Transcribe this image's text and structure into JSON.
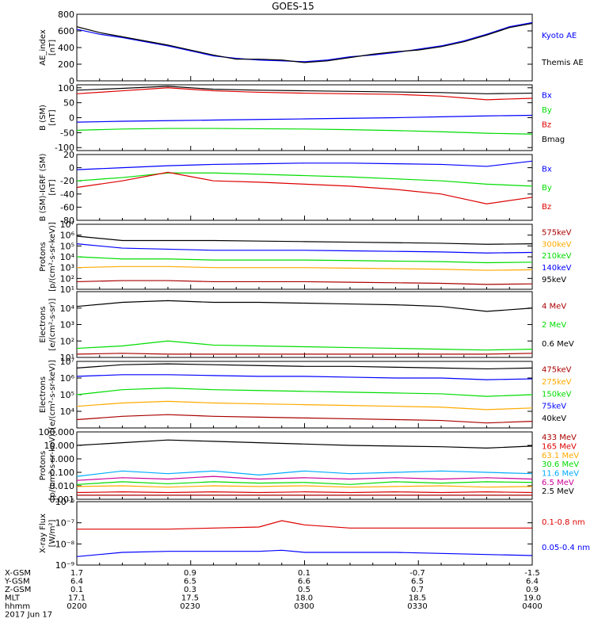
{
  "title": "GOES-15",
  "colors": {
    "black": "#000000",
    "blue": "#0000ff",
    "green": "#00dd00",
    "red": "#dd0000",
    "orange": "#ffaa00",
    "dark_red": "#aa0000",
    "cyan": "#00aaff",
    "magenta": "#aa0055",
    "purple": "#cc0099"
  },
  "chart_data": [
    {
      "type": "line",
      "panel": "ae",
      "ylabel": "AE_index\n[nT]",
      "ylim": [
        0,
        800
      ],
      "yticks": [
        "0",
        "200",
        "400",
        "600",
        "800"
      ],
      "ytick_values": [
        0,
        200,
        400,
        600,
        800
      ],
      "x": [
        0,
        5,
        10,
        15,
        20,
        25,
        30,
        35,
        40,
        45,
        50,
        55,
        60,
        65,
        70,
        75,
        80,
        85,
        90,
        95,
        100
      ],
      "series": [
        {
          "name": "Kyoto AE",
          "color": "#0000ff",
          "values": [
            620,
            560,
            520,
            470,
            420,
            360,
            300,
            270,
            250,
            240,
            230,
            250,
            290,
            310,
            340,
            380,
            420,
            480,
            560,
            650,
            700
          ]
        },
        {
          "name": "Themis AE",
          "color": "#000000",
          "values": [
            650,
            580,
            530,
            480,
            430,
            370,
            310,
            260,
            260,
            250,
            220,
            240,
            280,
            320,
            350,
            370,
            410,
            470,
            550,
            640,
            690
          ]
        }
      ]
    },
    {
      "type": "line",
      "panel": "bsm",
      "ylabel": "B (SM)\n[nT]",
      "ylim": [
        -110,
        110
      ],
      "yticks": [
        "-100",
        "-50",
        "0",
        "50",
        "100"
      ],
      "ytick_values": [
        -100,
        -50,
        0,
        50,
        100
      ],
      "x": [
        0,
        10,
        20,
        30,
        40,
        50,
        60,
        70,
        80,
        90,
        100
      ],
      "series": [
        {
          "name": "Bx",
          "color": "#0000ff",
          "values": [
            -15,
            -12,
            -10,
            -8,
            -6,
            -4,
            -2,
            0,
            3,
            6,
            8
          ]
        },
        {
          "name": "By",
          "color": "#00dd00",
          "values": [
            -42,
            -38,
            -36,
            -36,
            -37,
            -38,
            -40,
            -43,
            -47,
            -52,
            -55
          ]
        },
        {
          "name": "Bz",
          "color": "#dd0000",
          "values": [
            80,
            90,
            100,
            90,
            85,
            82,
            80,
            78,
            72,
            60,
            65
          ]
        },
        {
          "name": "Bmag",
          "color": "#000000",
          "values": [
            92,
            98,
            105,
            95,
            92,
            90,
            88,
            86,
            84,
            80,
            82
          ]
        }
      ]
    },
    {
      "type": "line",
      "panel": "bigrf",
      "ylabel": "B (SM)-IGRF (SM)\n[nT]",
      "ylim": [
        -80,
        20
      ],
      "yticks": [
        "-80",
        "-60",
        "-40",
        "-20",
        "0",
        "20"
      ],
      "ytick_values": [
        -80,
        -60,
        -40,
        -20,
        0,
        20
      ],
      "x": [
        0,
        10,
        20,
        30,
        40,
        50,
        60,
        70,
        80,
        90,
        100
      ],
      "series": [
        {
          "name": "Bx",
          "color": "#0000ff",
          "values": [
            -3,
            0,
            3,
            5,
            6,
            7,
            7,
            6,
            5,
            2,
            10
          ]
        },
        {
          "name": "By",
          "color": "#00dd00",
          "values": [
            -20,
            -15,
            -8,
            -8,
            -10,
            -12,
            -14,
            -17,
            -20,
            -25,
            -28
          ]
        },
        {
          "name": "Bz",
          "color": "#dd0000",
          "values": [
            -30,
            -20,
            -7,
            -20,
            -22,
            -25,
            -28,
            -33,
            -40,
            -55,
            -45
          ]
        }
      ]
    },
    {
      "type": "line",
      "panel": "protons",
      "log": true,
      "ylabel": "Protons\n[p/(cm²-s-sr-keV)]",
      "ylim": [
        1,
        7
      ],
      "yticks": [
        "10¹",
        "10²",
        "10³",
        "10⁴",
        "10⁵",
        "10⁶",
        "10⁷"
      ],
      "ytick_values": [
        1,
        2,
        3,
        4,
        5,
        6,
        7
      ],
      "x": [
        0,
        10,
        20,
        30,
        40,
        50,
        60,
        70,
        80,
        90,
        100
      ],
      "series": [
        {
          "name": "575keV",
          "color": "#aa0000",
          "values": [
            1.7,
            1.8,
            1.8,
            1.7,
            1.7,
            1.7,
            1.65,
            1.6,
            1.55,
            1.45,
            1.5
          ]
        },
        {
          "name": "300keV",
          "color": "#ffaa00",
          "values": [
            3.0,
            3.1,
            3.1,
            3.0,
            3.0,
            3.0,
            2.95,
            2.9,
            2.85,
            2.75,
            2.8
          ]
        },
        {
          "name": "210keV",
          "color": "#00dd00",
          "values": [
            4.0,
            3.8,
            3.8,
            3.7,
            3.7,
            3.7,
            3.65,
            3.6,
            3.55,
            3.45,
            3.5
          ]
        },
        {
          "name": "140keV",
          "color": "#0000ff",
          "values": [
            5.2,
            4.8,
            4.7,
            4.6,
            4.6,
            4.6,
            4.55,
            4.5,
            4.45,
            4.35,
            4.4
          ]
        },
        {
          "name": "95keV",
          "color": "#000000",
          "values": [
            5.9,
            5.5,
            5.5,
            5.5,
            5.45,
            5.4,
            5.35,
            5.3,
            5.25,
            5.15,
            5.2
          ]
        }
      ]
    },
    {
      "type": "line",
      "panel": "electrons_mev",
      "log": true,
      "ylabel": "Electrons\n[e/(cm²-s-sr)]",
      "ylim": [
        1,
        5
      ],
      "yticks": [
        "10¹",
        "10²",
        "10³",
        "10⁴"
      ],
      "ytick_values": [
        1,
        2,
        3,
        4
      ],
      "x": [
        0,
        10,
        20,
        30,
        40,
        50,
        60,
        70,
        80,
        90,
        100
      ],
      "series": [
        {
          "name": "4 MeV",
          "color": "#aa0000",
          "values": [
            1.2,
            1.25,
            1.2,
            1.2,
            1.2,
            1.2,
            1.2,
            1.2,
            1.2,
            1.2,
            1.25
          ]
        },
        {
          "name": "2 MeV",
          "color": "#00dd00",
          "values": [
            1.55,
            1.7,
            2.0,
            1.75,
            1.7,
            1.65,
            1.6,
            1.55,
            1.5,
            1.45,
            1.5
          ]
        },
        {
          "name": "0.6 MeV",
          "color": "#000000",
          "values": [
            4.1,
            4.35,
            4.45,
            4.35,
            4.35,
            4.3,
            4.25,
            4.2,
            4.1,
            3.8,
            4.0
          ]
        }
      ]
    },
    {
      "type": "line",
      "panel": "electrons_kev",
      "log": true,
      "ylabel": "Electrons\n[e/(cm²-s-sr-keV)]",
      "ylim": [
        3,
        7
      ],
      "yticks": [
        "10⁴",
        "10⁵",
        "10⁶",
        "10⁷"
      ],
      "ytick_values": [
        4,
        5,
        6,
        7
      ],
      "x": [
        0,
        10,
        20,
        30,
        40,
        50,
        60,
        70,
        80,
        90,
        100
      ],
      "series": [
        {
          "name": "475keV",
          "color": "#aa0000",
          "values": [
            3.5,
            3.7,
            3.8,
            3.7,
            3.65,
            3.6,
            3.55,
            3.5,
            3.45,
            3.3,
            3.4
          ]
        },
        {
          "name": "275keV",
          "color": "#ffaa00",
          "values": [
            4.3,
            4.5,
            4.6,
            4.5,
            4.45,
            4.4,
            4.35,
            4.3,
            4.25,
            4.1,
            4.2
          ]
        },
        {
          "name": "150keV",
          "color": "#00dd00",
          "values": [
            5.0,
            5.3,
            5.4,
            5.3,
            5.25,
            5.2,
            5.15,
            5.1,
            5.05,
            4.9,
            5.0
          ]
        },
        {
          "name": "75keV",
          "color": "#0000ff",
          "values": [
            6.1,
            6.2,
            6.2,
            6.15,
            6.1,
            6.1,
            6.05,
            6.0,
            6.0,
            5.9,
            5.95
          ]
        },
        {
          "name": "40keV",
          "color": "#000000",
          "values": [
            6.6,
            6.8,
            6.85,
            6.8,
            6.75,
            6.7,
            6.7,
            6.65,
            6.6,
            6.55,
            6.6
          ]
        }
      ]
    },
    {
      "type": "line",
      "panel": "protons_mev",
      "log": true,
      "ylabel": "Protons\n[p/(cm²-s-sr-keV)]",
      "ylim": [
        -3,
        2
      ],
      "yticks": [
        "0.001",
        "0.010",
        "0.100",
        "1.000",
        "10.000",
        "100.000"
      ],
      "ytick_values": [
        -3,
        -2,
        -1,
        0,
        1,
        2
      ],
      "x": [
        0,
        10,
        20,
        30,
        40,
        50,
        60,
        70,
        80,
        90,
        100
      ],
      "series": [
        {
          "name": "433 MeV",
          "color": "#aa0000",
          "values": [
            -2.7,
            -2.7,
            -2.7,
            -2.7,
            -2.7,
            -2.7,
            -2.7,
            -2.7,
            -2.7,
            -2.7,
            -2.7
          ]
        },
        {
          "name": "165 MeV",
          "color": "#dd0000",
          "values": [
            -2.5,
            -2.45,
            -2.5,
            -2.45,
            -2.5,
            -2.45,
            -2.5,
            -2.45,
            -2.5,
            -2.45,
            -2.5
          ]
        },
        {
          "name": "63.1 MeV",
          "color": "#ffaa00",
          "values": [
            -2.05,
            -2.0,
            -2.1,
            -2.0,
            -2.05,
            -2.0,
            -2.1,
            -2.05,
            -2.0,
            -2.1,
            -2.05
          ]
        },
        {
          "name": "30.6 MeV",
          "color": "#00dd00",
          "values": [
            -1.9,
            -1.7,
            -1.85,
            -1.7,
            -1.8,
            -1.75,
            -1.9,
            -1.7,
            -1.8,
            -1.7,
            -1.75
          ]
        },
        {
          "name": "11.6 MeV",
          "color": "#00aaff",
          "values": [
            -1.3,
            -0.9,
            -1.1,
            -0.9,
            -1.2,
            -0.9,
            -1.1,
            -1.0,
            -0.9,
            -1.0,
            -1.1
          ]
        },
        {
          "name": "6.5 MeV",
          "color": "#cc0099",
          "values": [
            -1.6,
            -1.4,
            -1.5,
            -1.3,
            -1.5,
            -1.4,
            -1.5,
            -1.4,
            -1.5,
            -1.4,
            -1.5
          ]
        },
        {
          "name": "2.5 MeV",
          "color": "#000000",
          "values": [
            1.0,
            1.2,
            1.4,
            1.3,
            1.2,
            1.1,
            1.0,
            0.95,
            0.9,
            0.8,
            0.95
          ]
        }
      ]
    },
    {
      "type": "line",
      "panel": "xray",
      "log": true,
      "ylabel": "X-ray Flux\n[W/m²]",
      "ylim": [
        -9,
        -6
      ],
      "yticks": [
        "10⁻⁹",
        "10⁻⁸",
        "10⁻⁷",
        "10⁻⁶"
      ],
      "ytick_values": [
        -9,
        -8,
        -7,
        -6
      ],
      "x": [
        0,
        10,
        20,
        30,
        40,
        45,
        50,
        60,
        70,
        80,
        90,
        100
      ],
      "series": [
        {
          "name": "0.1-0.8 nm",
          "color": "#dd0000",
          "values": [
            -7.3,
            -7.3,
            -7.3,
            -7.25,
            -7.2,
            -6.9,
            -7.1,
            -7.25,
            -7.25,
            -7.25,
            -7.25,
            -7.25
          ]
        },
        {
          "name": "0.05-0.4 nm",
          "color": "#0000ff",
          "values": [
            -8.6,
            -8.4,
            -8.35,
            -8.35,
            -8.35,
            -8.3,
            -8.4,
            -8.4,
            -8.4,
            -8.45,
            -8.5,
            -8.55
          ]
        }
      ]
    }
  ],
  "xaxis": {
    "rows": [
      {
        "label": "X-GSM",
        "values": [
          "1.7",
          "0.9",
          "0.1",
          "-0.7",
          "-1.5"
        ]
      },
      {
        "label": "Y-GSM",
        "values": [
          "6.4",
          "6.5",
          "6.6",
          "6.5",
          "6.4"
        ]
      },
      {
        "label": "Z-GSM",
        "values": [
          "0.1",
          "0.3",
          "0.5",
          "0.7",
          "0.9"
        ]
      },
      {
        "label": "MLT",
        "values": [
          "17.1",
          "17.5",
          "18.0",
          "18.5",
          "19.0"
        ]
      },
      {
        "label": "hhmm",
        "values": [
          "0200",
          "0230",
          "0300",
          "0330",
          "0400"
        ]
      }
    ],
    "date": "2017 Jun 17"
  }
}
